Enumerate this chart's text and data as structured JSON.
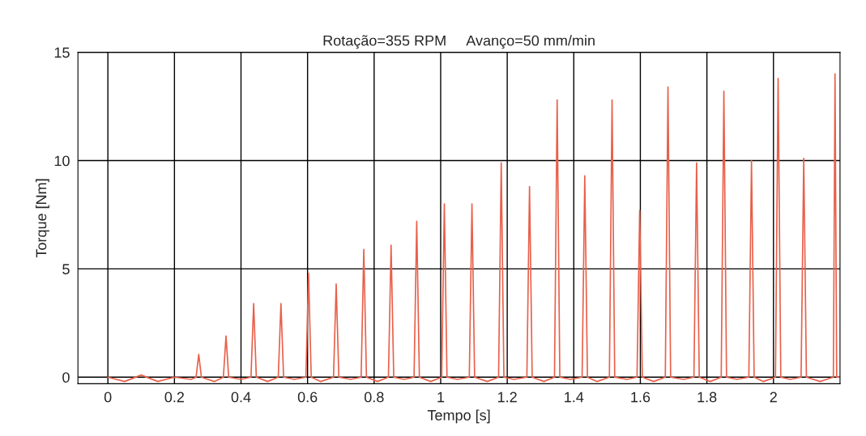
{
  "chart_data": {
    "type": "line",
    "title": "Rotação=355 RPM     Avanço=50 mm/min",
    "xlabel": "Tempo [s]",
    "ylabel": "Torque [Nm]",
    "xlim": [
      -0.09,
      2.2
    ],
    "ylim": [
      -0.3,
      15
    ],
    "xticks": [
      0,
      0.2,
      0.4,
      0.6,
      0.8,
      1,
      1.2,
      1.4,
      1.6,
      1.8,
      2
    ],
    "yticks": [
      0,
      5,
      10,
      15
    ],
    "grid": true,
    "series": [
      {
        "color": "#e8604a",
        "x": [
          0,
          0.05,
          0.1,
          0.15,
          0.2,
          0.25,
          0.265,
          0.273,
          0.281,
          0.32,
          0.347,
          0.355,
          0.363,
          0.4,
          0.43,
          0.438,
          0.446,
          0.48,
          0.512,
          0.52,
          0.528,
          0.56,
          0.595,
          0.603,
          0.611,
          0.64,
          0.678,
          0.686,
          0.694,
          0.73,
          0.761,
          0.769,
          0.777,
          0.81,
          0.843,
          0.851,
          0.859,
          0.89,
          0.92,
          0.928,
          0.936,
          0.97,
          1.003,
          1.011,
          1.019,
          1.05,
          1.086,
          1.094,
          1.102,
          1.14,
          1.174,
          1.182,
          1.19,
          1.22,
          1.259,
          1.267,
          1.275,
          1.31,
          1.342,
          1.35,
          1.358,
          1.39,
          1.425,
          1.433,
          1.441,
          1.47,
          1.507,
          1.515,
          1.523,
          1.56,
          1.59,
          1.598,
          1.606,
          1.64,
          1.675,
          1.683,
          1.691,
          1.73,
          1.761,
          1.769,
          1.777,
          1.81,
          1.843,
          1.851,
          1.859,
          1.89,
          1.926,
          1.934,
          1.942,
          1.97,
          2.006,
          2.014,
          2.022,
          2.05,
          2.083,
          2.091,
          2.099,
          2.14,
          2.18,
          2.185,
          2.19,
          2.2
        ],
        "values": [
          0,
          -0.2,
          0.1,
          -0.2,
          0,
          -0.1,
          0,
          1.05,
          0,
          -0.2,
          0,
          1.9,
          0,
          -0.1,
          0,
          3.4,
          0,
          -0.2,
          0,
          3.4,
          0,
          -0.1,
          0,
          4.8,
          0,
          -0.2,
          0,
          4.3,
          0,
          -0.1,
          0,
          5.9,
          0,
          -0.2,
          0,
          6.1,
          0,
          -0.1,
          0,
          7.2,
          0,
          -0.2,
          0,
          8.0,
          0,
          -0.1,
          0,
          8.0,
          0,
          -0.2,
          0,
          9.9,
          0,
          -0.1,
          0,
          8.8,
          0,
          -0.2,
          0,
          12.8,
          0,
          -0.1,
          0,
          9.3,
          0,
          -0.2,
          0,
          12.8,
          0,
          -0.1,
          0,
          7.7,
          0,
          -0.2,
          0,
          13.4,
          0,
          -0.1,
          0,
          9.9,
          0,
          -0.2,
          0,
          13.2,
          0,
          -0.1,
          0,
          10.0,
          0,
          -0.2,
          0,
          13.8,
          0,
          -0.1,
          0,
          10.1,
          0,
          -0.2,
          0,
          14.0,
          0,
          0
        ]
      }
    ]
  }
}
